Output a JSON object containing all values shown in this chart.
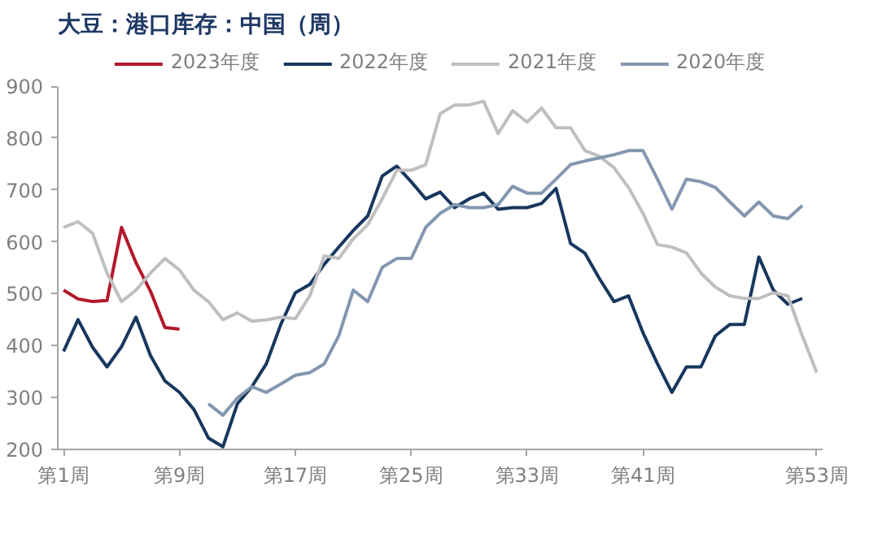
{
  "chart_data": {
    "type": "line",
    "title": "大豆：港口库存：中国（周）",
    "legend": "top",
    "grid": false,
    "line_style": "solid",
    "marker": "none",
    "categories": [
      "第1周",
      null,
      null,
      null,
      null,
      null,
      null,
      null,
      "第9周",
      null,
      null,
      null,
      null,
      null,
      null,
      null,
      "第17周",
      null,
      null,
      null,
      null,
      null,
      null,
      null,
      "第25周",
      null,
      null,
      null,
      null,
      null,
      null,
      null,
      "第33周",
      null,
      null,
      null,
      null,
      null,
      null,
      null,
      "第41周",
      null,
      null,
      null,
      null,
      null,
      null,
      null,
      null,
      null,
      null,
      null,
      "第53周"
    ],
    "ylim": [
      200,
      900
    ],
    "yticks": [
      200,
      300,
      400,
      500,
      600,
      700,
      800,
      900
    ],
    "series": [
      {
        "name": "2023年度",
        "color": "#b2182b",
        "values": [
          507,
          490,
          485,
          487,
          628,
          560,
          505,
          435,
          432,
          null,
          null,
          null,
          null,
          null,
          null,
          null,
          null,
          null,
          null,
          null,
          null,
          null,
          null,
          null,
          null,
          null,
          null,
          null,
          null,
          null,
          null,
          null,
          null,
          null,
          null,
          null,
          null,
          null,
          null,
          null,
          null,
          null,
          null,
          null,
          null,
          null,
          null,
          null,
          null,
          null,
          null,
          null,
          null
        ]
      },
      {
        "name": "2022年度",
        "color": "#17375e",
        "values": [
          389,
          450,
          397,
          359,
          398,
          455,
          381,
          332,
          310,
          277,
          222,
          205,
          288,
          321,
          365,
          441,
          502,
          518,
          557,
          590,
          622,
          650,
          727,
          746,
          716,
          683,
          696,
          666,
          683,
          694,
          663,
          666,
          666,
          674,
          703,
          597,
          578,
          529,
          485,
          496,
          425,
          365,
          310,
          359,
          359,
          419,
          441,
          441,
          571,
          507,
          480,
          491,
          null
        ]
      },
      {
        "name": "2021年度",
        "color": "#bfbfbf",
        "values": [
          628,
          639,
          617,
          540,
          485,
          507,
          540,
          568,
          546,
          507,
          485,
          450,
          463,
          447,
          450,
          455,
          452,
          496,
          573,
          568,
          606,
          633,
          683,
          738,
          738,
          749,
          847,
          864,
          864,
          871,
          809,
          853,
          831,
          858,
          820,
          820,
          776,
          765,
          743,
          705,
          655,
          595,
          590,
          579,
          540,
          513,
          496,
          491,
          491,
          502,
          496,
          419,
          348
        ]
      },
      {
        "name": "2020年度",
        "color": "#8497b0",
        "values": [
          null,
          null,
          null,
          null,
          null,
          null,
          null,
          null,
          null,
          null,
          288,
          266,
          299,
          321,
          310,
          326,
          343,
          348,
          365,
          419,
          507,
          485,
          551,
          568,
          568,
          628,
          655,
          672,
          666,
          666,
          672,
          707,
          694,
          694,
          721,
          749,
          756,
          762,
          768,
          776,
          776,
          721,
          663,
          721,
          716,
          705,
          677,
          650,
          677,
          650,
          645,
          670,
          null
        ]
      }
    ]
  }
}
